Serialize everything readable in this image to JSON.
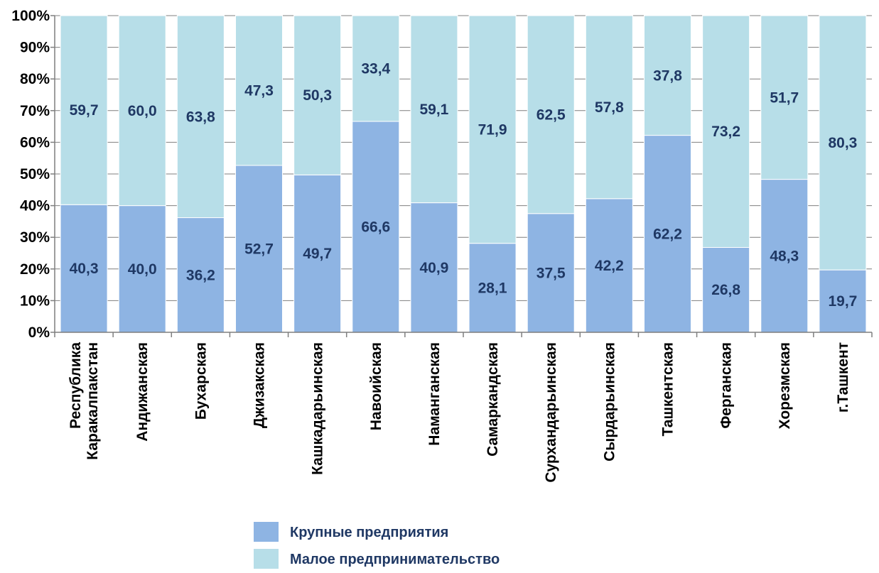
{
  "chart_data": {
    "type": "bar",
    "stacked": true,
    "percent": true,
    "categories": [
      [
        "Республика",
        "Каракалпакстан"
      ],
      [
        "Андижанская"
      ],
      [
        "Бухарская"
      ],
      [
        "Джизакская"
      ],
      [
        "Кашкадарьинская"
      ],
      [
        "Навоийская"
      ],
      [
        "Наманганская"
      ],
      [
        "Самаркандская"
      ],
      [
        "Сурхандарьинская"
      ],
      [
        "Сырдарьинская"
      ],
      [
        "Ташкентская"
      ],
      [
        "Ферганская"
      ],
      [
        "Хорезмская"
      ],
      [
        "г.Ташкент"
      ]
    ],
    "series": [
      {
        "name": "Крупные предприятия",
        "color": "#8eb4e3",
        "values": [
          40.3,
          40.0,
          36.2,
          52.7,
          49.7,
          66.6,
          40.9,
          28.1,
          37.5,
          42.2,
          62.2,
          26.8,
          48.3,
          19.7
        ],
        "labels": [
          "40,3",
          "40,0",
          "36,2",
          "52,7",
          "49,7",
          "66,6",
          "40,9",
          "28,1",
          "37,5",
          "42,2",
          "62,2",
          "26,8",
          "48,3",
          "19,7"
        ]
      },
      {
        "name": "Малое предпринимательство",
        "color": "#b7dee8",
        "values": [
          59.7,
          60.0,
          63.8,
          47.3,
          50.3,
          33.4,
          59.1,
          71.9,
          62.5,
          57.8,
          37.8,
          73.2,
          51.7,
          80.3
        ],
        "labels": [
          "59,7",
          "60,0",
          "63,8",
          "47,3",
          "50,3",
          "33,4",
          "59,1",
          "71,9",
          "62,5",
          "57,8",
          "37,8",
          "73,2",
          "51,7",
          "80,3"
        ]
      }
    ],
    "y_ticks": [
      "0%",
      "10%",
      "20%",
      "30%",
      "40%",
      "50%",
      "60%",
      "70%",
      "80%",
      "90%",
      "100%"
    ],
    "ylim": [
      0,
      100
    ],
    "grid": true,
    "legend_position": "bottom",
    "label_color": "#1f3864"
  }
}
